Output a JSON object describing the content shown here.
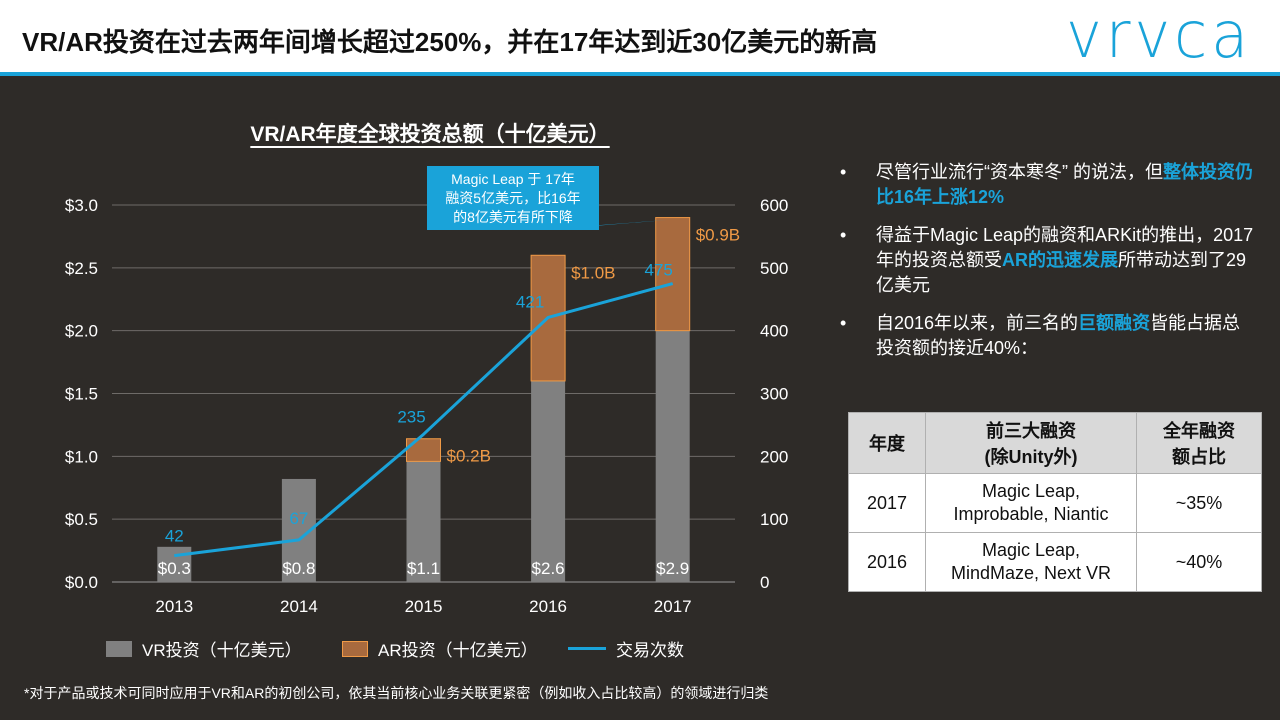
{
  "title": "VR/AR投资在过去两年间增长超过250%，并在17年达到近30亿美元的新高",
  "logo_text": "vrvca",
  "colors": {
    "accent": "#1aa3d9",
    "vr_bar": "#808080",
    "ar_bar": "#a86a3e",
    "ar_label": "#f09a46",
    "line": "#1aa3d9"
  },
  "chart_data": {
    "type": "bar",
    "title": "VR/AR年度全球投资总额（十亿美元）",
    "categories": [
      "2013",
      "2014",
      "2015",
      "2016",
      "2017"
    ],
    "stacked": true,
    "left_axis": {
      "ticks": [
        "$0.0",
        "$0.5",
        "$1.0",
        "$1.5",
        "$2.0",
        "$2.5",
        "$3.0"
      ],
      "ylim": [
        0,
        3.0
      ]
    },
    "right_axis": {
      "ticks": [
        "0",
        "100",
        "200",
        "300",
        "400",
        "500",
        "600"
      ],
      "ylim": [
        0,
        600
      ]
    },
    "series": [
      {
        "name": "VR投资（十亿美元）",
        "kind": "bar",
        "values": [
          0.28,
          0.82,
          0.96,
          1.6,
          2.0
        ]
      },
      {
        "name": "AR投资（十亿美元）",
        "kind": "bar",
        "values": [
          0,
          0,
          0.18,
          1.0,
          0.9
        ]
      },
      {
        "name": "交易次数",
        "kind": "line",
        "axis": "right",
        "values": [
          42,
          67,
          235,
          421,
          475
        ]
      }
    ],
    "total_labels": [
      "$0.3",
      "$0.8",
      "$1.1",
      "$2.6",
      "$2.9"
    ],
    "ar_labels": [
      "",
      "",
      "$0.2B",
      "$1.0B",
      "$0.9B"
    ],
    "line_labels": [
      "42",
      "67",
      "235",
      "421",
      "475"
    ],
    "grid": true,
    "legend_position": "bottom",
    "callout": {
      "lines": [
        "Magic Leap 于 17年",
        "融资5亿美元，比16年",
        "的8亿美元有所下降"
      ]
    }
  },
  "bullets": [
    {
      "parts": [
        {
          "t": "尽管行业流行“资本寒冬” 的说法，但",
          "hl": false
        },
        {
          "t": "整体投资仍比16年上涨12%",
          "hl": true
        }
      ]
    },
    {
      "parts": [
        {
          "t": "得益于Magic Leap的融资和ARKit的推出，2017年的投资总额受",
          "hl": false
        },
        {
          "t": "AR的迅速发展",
          "hl": true
        },
        {
          "t": "所带动达到了29亿美元",
          "hl": false
        }
      ]
    },
    {
      "parts": [
        {
          "t": "自2016年以来，前三名的",
          "hl": false
        },
        {
          "t": "巨额融资",
          "hl": true
        },
        {
          "t": "皆能占据总投资额的接近40%：",
          "hl": false
        }
      ]
    }
  ],
  "bullet_char": "•",
  "table": {
    "headers": [
      "年度",
      "前三大融资\n(除Unity外)",
      "全年融资\n额占比"
    ],
    "rows": [
      [
        "2017",
        "Magic Leap,\nImprobable, Niantic",
        "~35%"
      ],
      [
        "2016",
        "Magic Leap,\nMindMaze, Next VR",
        "~40%"
      ]
    ]
  },
  "footnote": "*对于产品或技术可同时应用于VR和AR的初创公司，依其当前核心业务关联更紧密（例如收入占比较高）的领域进行归类"
}
